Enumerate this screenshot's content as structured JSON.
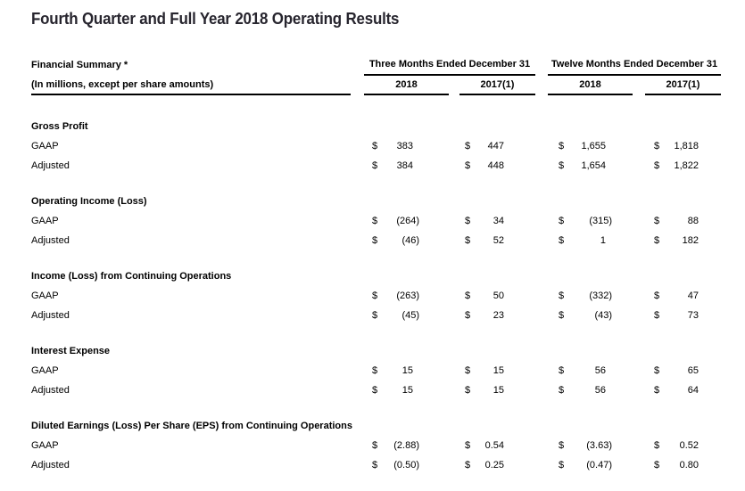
{
  "page": {
    "title": "Fourth Quarter and Full Year 2018 Operating Results"
  },
  "colors": {
    "title_text": "#27252e",
    "body_text": "#000000",
    "rule": "#000000",
    "background": "#ffffff"
  },
  "table": {
    "label_header": "Financial Summary *",
    "label_subheader": "(In millions, except per share amounts)",
    "currency_symbol": "$",
    "col_groups": [
      {
        "label": "Three Months Ended December 31",
        "cols": [
          "2018",
          "2017(1)"
        ]
      },
      {
        "label": "Twelve Months Ended December 31",
        "cols": [
          "2018",
          "2017(1)"
        ]
      }
    ],
    "sections": [
      {
        "name": "Gross Profit",
        "rows": [
          {
            "label": "GAAP",
            "values": [
              "383",
              "447",
              "1,655",
              "1,818"
            ]
          },
          {
            "label": "Adjusted",
            "values": [
              "384",
              "448",
              "1,654",
              "1,822"
            ]
          }
        ]
      },
      {
        "name": "Operating Income (Loss)",
        "rows": [
          {
            "label": "GAAP",
            "values": [
              "(264)",
              "34",
              "(315)",
              "88"
            ]
          },
          {
            "label": "Adjusted",
            "values": [
              "(46)",
              "52",
              "1",
              "182"
            ]
          }
        ]
      },
      {
        "name": "Income (Loss) from Continuing Operations",
        "rows": [
          {
            "label": "GAAP",
            "values": [
              "(263)",
              "50",
              "(332)",
              "47"
            ]
          },
          {
            "label": "Adjusted",
            "values": [
              "(45)",
              "23",
              "(43)",
              "73"
            ]
          }
        ]
      },
      {
        "name": "Interest Expense",
        "rows": [
          {
            "label": "GAAP",
            "values": [
              "15",
              "15",
              "56",
              "65"
            ]
          },
          {
            "label": "Adjusted",
            "values": [
              "15",
              "15",
              "56",
              "64"
            ]
          }
        ]
      },
      {
        "name": "Diluted Earnings (Loss) Per Share (EPS) from Continuing Operations",
        "rows": [
          {
            "label": "GAAP",
            "values": [
              "(2.88)",
              "0.54",
              "(3.63)",
              "0.52"
            ]
          },
          {
            "label": "Adjusted",
            "values": [
              "(0.50)",
              "0.25",
              "(0.47)",
              "0.80"
            ]
          }
        ]
      }
    ]
  }
}
